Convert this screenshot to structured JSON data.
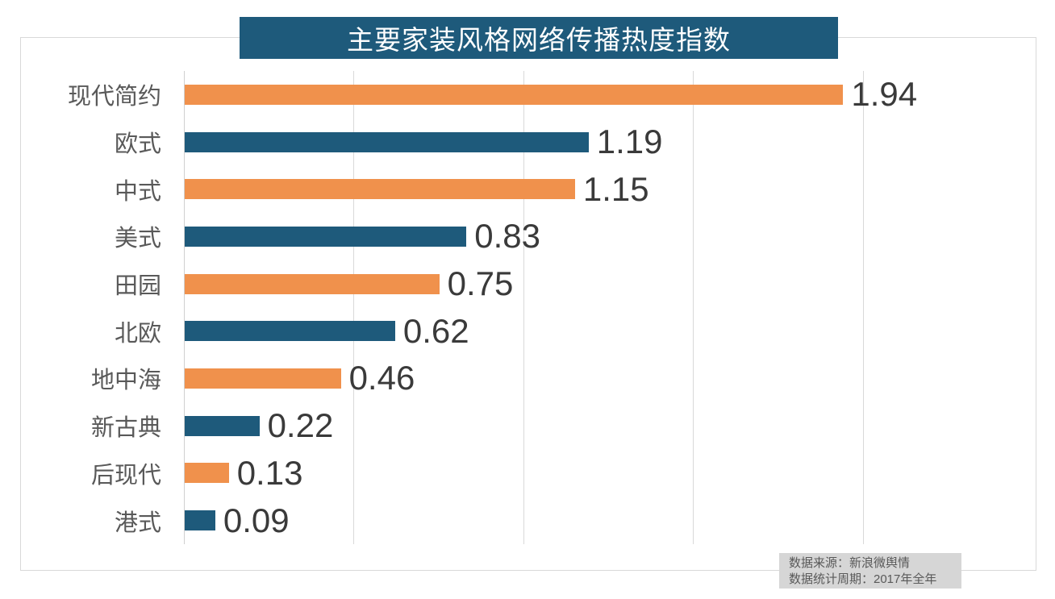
{
  "title": "主要家装风格网络传播热度指数",
  "chart_data": {
    "type": "bar",
    "orientation": "horizontal",
    "title": "主要家装风格网络传播热度指数",
    "categories": [
      "现代简约",
      "欧式",
      "中式",
      "美式",
      "田园",
      "北欧",
      "地中海",
      "新古典",
      "后现代",
      "港式"
    ],
    "values": [
      1.94,
      1.19,
      1.15,
      0.83,
      0.75,
      0.62,
      0.46,
      0.22,
      0.13,
      0.09
    ],
    "value_labels": [
      "1.94",
      "1.19",
      "1.15",
      "0.83",
      "0.75",
      "0.62",
      "0.46",
      "0.22",
      "0.13",
      "0.09"
    ],
    "xlim": [
      0,
      2.5
    ],
    "gridline_ticks": [
      0.5,
      1.0,
      1.5,
      2.0
    ],
    "grid": "vertical-gridlines-only",
    "legend": "none",
    "bar_colors_alternating": [
      "#F0914C",
      "#1E5A7B"
    ],
    "data_labels": "outside-end"
  },
  "colors": {
    "orange_bar": "#F0914C",
    "teal_bar": "#1E5A7B",
    "title_bg": "#1E5A7B",
    "title_text": "#FFFFFF",
    "gridline": "#D9D9D9",
    "frame_border": "#D9D9D9",
    "category_label": "#595959",
    "value_label": "#3A3A3A",
    "footer_bg": "#D6D6D6",
    "footer_text": "#595959"
  },
  "footer": {
    "line1": "数据来源：新浪微舆情",
    "line2": "数据统计周期：2017年全年"
  }
}
